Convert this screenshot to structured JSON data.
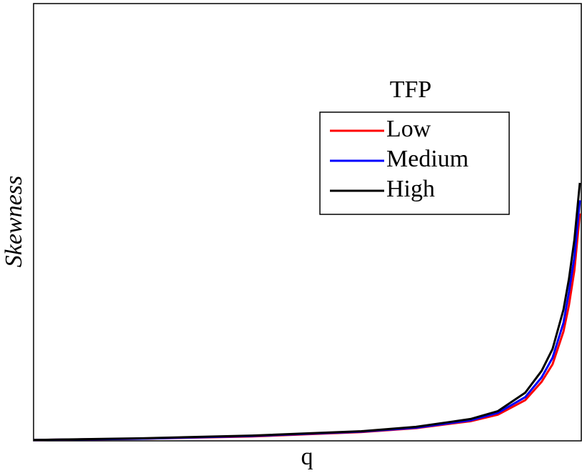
{
  "chart_data": {
    "type": "line",
    "xlabel": "q",
    "ylabel": "Skewness",
    "legend_title": "TFP",
    "legend": "upper right",
    "xlim": [
      0,
      1
    ],
    "ylim": [
      0,
      1
    ],
    "x": [
      0,
      0.2,
      0.4,
      0.6,
      0.7,
      0.8,
      0.85,
      0.9,
      0.93,
      0.95,
      0.97,
      0.98,
      0.99,
      1.0
    ],
    "series": [
      {
        "name": "Low",
        "color": "#ff0000",
        "values": [
          0.002,
          0.005,
          0.01,
          0.02,
          0.029,
          0.045,
          0.06,
          0.093,
          0.135,
          0.175,
          0.25,
          0.31,
          0.39,
          0.52
        ]
      },
      {
        "name": "Medium",
        "color": "#0000ff",
        "values": [
          0.002,
          0.005,
          0.011,
          0.021,
          0.03,
          0.047,
          0.064,
          0.1,
          0.145,
          0.19,
          0.27,
          0.34,
          0.42,
          0.55
        ]
      },
      {
        "name": "High",
        "color": "#000000",
        "values": [
          0.002,
          0.006,
          0.012,
          0.022,
          0.032,
          0.05,
          0.068,
          0.11,
          0.16,
          0.21,
          0.3,
          0.37,
          0.46,
          0.59
        ]
      }
    ]
  }
}
